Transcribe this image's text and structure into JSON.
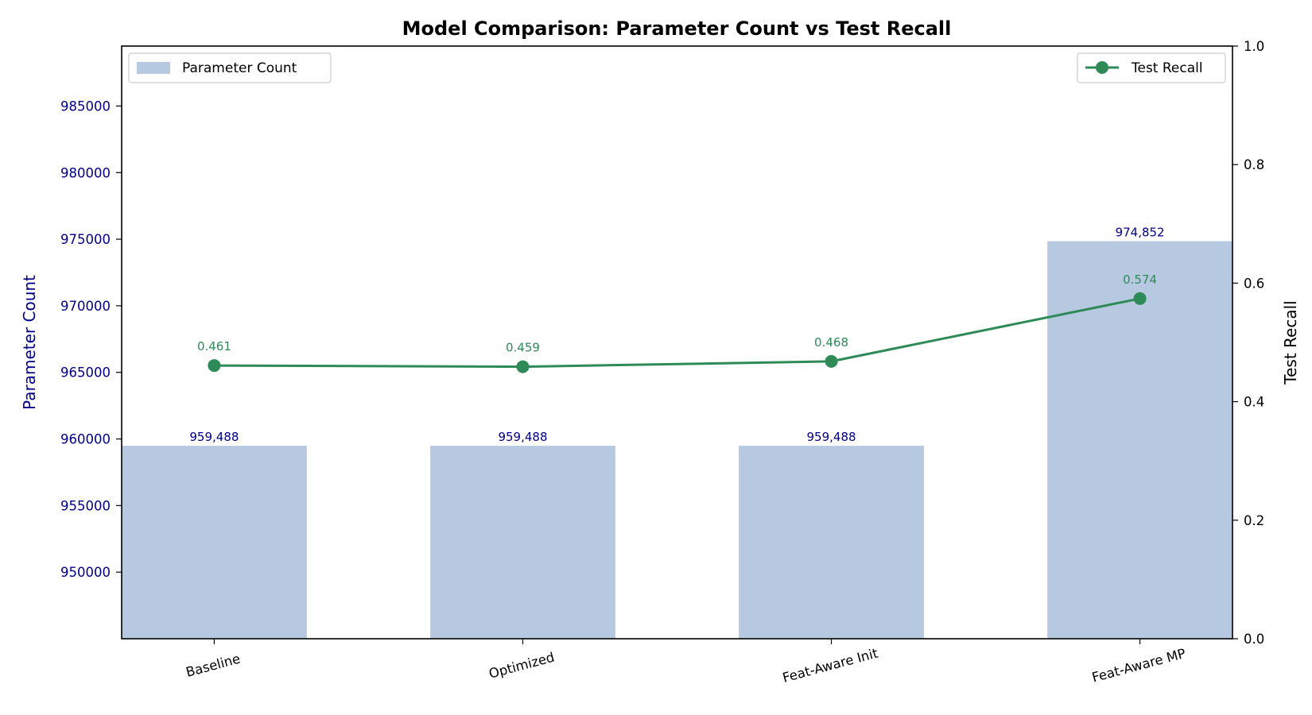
{
  "chart_data": {
    "type": "bar",
    "title": "Model Comparison: Parameter Count vs Test Recall",
    "categories": [
      "Baseline",
      "Optimized",
      "Feat-Aware Init",
      "Feat-Aware MP"
    ],
    "series": [
      {
        "name": "Parameter Count",
        "type": "bar",
        "axis": "left",
        "values": [
          959488,
          959488,
          959488,
          974852
        ],
        "value_labels": [
          "959,488",
          "959,488",
          "959,488",
          "974,852"
        ],
        "color": "#b7c9e1"
      },
      {
        "name": "Test Recall",
        "type": "line",
        "axis": "right",
        "values": [
          0.461,
          0.459,
          0.468,
          0.574
        ],
        "value_labels": [
          "0.461",
          "0.459",
          "0.468",
          "0.574"
        ],
        "color": "#2e8b57"
      }
    ],
    "y_left": {
      "label": "Parameter Count",
      "ylim": [
        945000,
        989500
      ],
      "ticks": [
        950000,
        955000,
        960000,
        965000,
        970000,
        975000,
        980000,
        985000
      ],
      "tick_labels": [
        "950000",
        "955000",
        "960000",
        "965000",
        "970000",
        "975000",
        "980000",
        "985000"
      ],
      "color": "#00008b"
    },
    "y_right": {
      "label": "Test Recall",
      "ylim": [
        0.0,
        1.0
      ],
      "ticks": [
        0.0,
        0.2,
        0.4,
        0.6,
        0.8,
        1.0
      ],
      "tick_labels": [
        "0.0",
        "0.2",
        "0.4",
        "0.6",
        "0.8",
        "1.0"
      ],
      "color": "#000000"
    },
    "xlabel": "",
    "grid": false,
    "legends": [
      {
        "series": "Parameter Count",
        "placement": "upper-left"
      },
      {
        "series": "Test Recall",
        "placement": "upper-right"
      }
    ]
  }
}
